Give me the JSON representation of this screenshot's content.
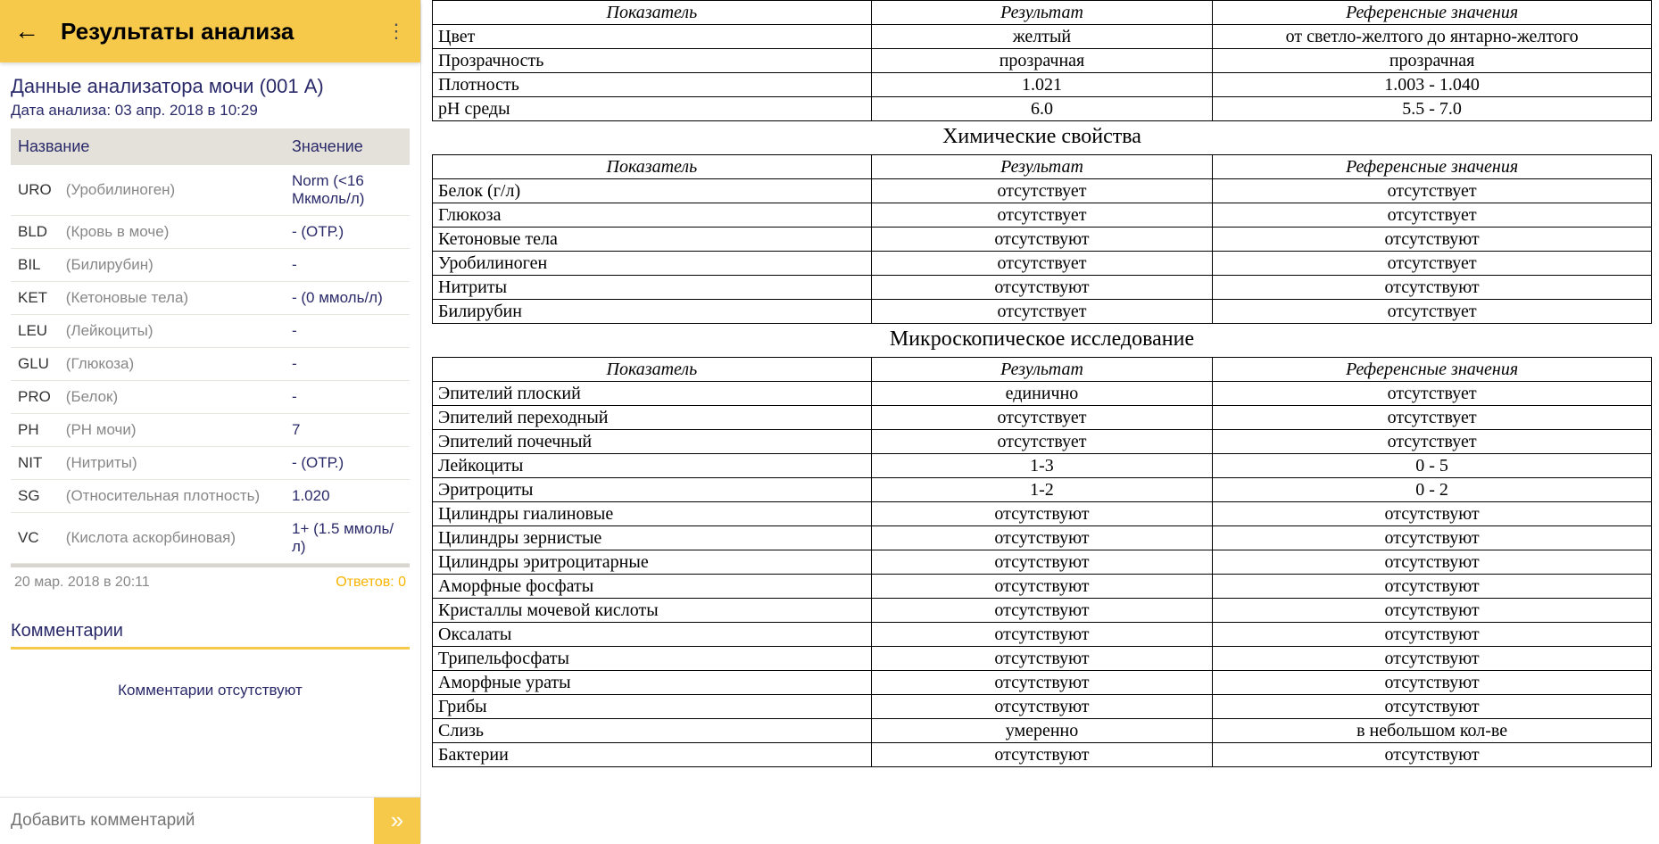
{
  "colors": {
    "accent": "#f7c94b",
    "primary_text": "#2a2a6a",
    "muted": "#888888",
    "border": "#000000",
    "header_bg": "#e4e1da"
  },
  "left": {
    "app_title": "Результаты анализа",
    "section_title": "Данные анализатора мочи (001 А)",
    "analysis_date": "Дата анализа: 03 апр. 2018 в 10:29",
    "table": {
      "col_name": "Название",
      "col_value": "Значение",
      "rows": [
        {
          "code": "URO",
          "name": "(Уробилиноген)",
          "value": "Norm (<16 Мкмоль/л)"
        },
        {
          "code": "BLD",
          "name": "(Кровь в моче)",
          "value": "- (ОТР.)"
        },
        {
          "code": "BIL",
          "name": "(Билирубин)",
          "value": "-"
        },
        {
          "code": "KET",
          "name": "(Кетоновые тела)",
          "value": "- (0 ммоль/л)"
        },
        {
          "code": "LEU",
          "name": "(Лейкоциты)",
          "value": "-"
        },
        {
          "code": "GLU",
          "name": "(Глюкоза)",
          "value": "-"
        },
        {
          "code": "PRO",
          "name": "(Белок)",
          "value": "-"
        },
        {
          "code": "PH",
          "name": "(РН мочи)",
          "value": "7"
        },
        {
          "code": "NIT",
          "name": "(Нитриты)",
          "value": "- (ОТР.)"
        },
        {
          "code": "SG",
          "name": "(Относительная плотность)",
          "value": "1.020"
        },
        {
          "code": "VC",
          "name": "(Кислота аскорбиновая)",
          "value": "1+ (1.5 ммоль/л)"
        }
      ]
    },
    "footer_date": "20 мар. 2018 в 20:11",
    "footer_answers": "Ответов: 0",
    "comments_heading": "Комментарии",
    "no_comments": "Комментарии отсутствуют",
    "comment_placeholder": "Добавить комментарий"
  },
  "right": {
    "headers": {
      "param": "Показатель",
      "result": "Результат",
      "ref": "Референсные значения"
    },
    "phys": {
      "rows": [
        {
          "param": "Цвет",
          "result": "желтый",
          "ref": "от светло-желтого до янтарно-желтого"
        },
        {
          "param": "Прозрачность",
          "result": "прозрачная",
          "ref": "прозрачная"
        },
        {
          "param": "Плотность",
          "result": "1.021",
          "ref": "1.003 - 1.040"
        },
        {
          "param": "pH среды",
          "result": "6.0",
          "ref": "5.5 - 7.0"
        }
      ]
    },
    "chem": {
      "title": "Химические свойства",
      "rows": [
        {
          "param": "Белок (г/л)",
          "result": "отсутствует",
          "ref": "отсутствует"
        },
        {
          "param": "Глюкоза",
          "result": "отсутствует",
          "ref": "отсутствует"
        },
        {
          "param": "Кетоновые тела",
          "result": "отсутствуют",
          "ref": "отсутствуют"
        },
        {
          "param": "Уробилиноген",
          "result": "отсутствует",
          "ref": "отсутствует"
        },
        {
          "param": "Нитриты",
          "result": "отсутствуют",
          "ref": "отсутствуют"
        },
        {
          "param": "Билирубин",
          "result": "отсутствует",
          "ref": "отсутствует"
        }
      ]
    },
    "micro": {
      "title": "Микроскопическое исследование",
      "rows": [
        {
          "param": "Эпителий плоский",
          "result": "единично",
          "ref": "отсутствует"
        },
        {
          "param": "Эпителий переходный",
          "result": "отсутствует",
          "ref": "отсутствует"
        },
        {
          "param": "Эпителий почечный",
          "result": "отсутствует",
          "ref": "отсутствует"
        },
        {
          "param": "Лейкоциты",
          "result": "1-3",
          "ref": "0 - 5"
        },
        {
          "param": "Эритроциты",
          "result": "1-2",
          "ref": "0 - 2"
        },
        {
          "param": "Цилиндры гиалиновые",
          "result": "отсутствуют",
          "ref": "отсутствуют"
        },
        {
          "param": "Цилиндры зернистые",
          "result": "отсутствуют",
          "ref": "отсутствуют"
        },
        {
          "param": "Цилиндры эритроцитарные",
          "result": "отсутствуют",
          "ref": "отсутствуют"
        },
        {
          "param": "Аморфные фосфаты",
          "result": "отсутствуют",
          "ref": "отсутствуют"
        },
        {
          "param": "Кристаллы мочевой кислоты",
          "result": "отсутствуют",
          "ref": "отсутствуют"
        },
        {
          "param": "Оксалаты",
          "result": "отсутствуют",
          "ref": "отсутствуют"
        },
        {
          "param": "Трипельфосфаты",
          "result": "отсутствуют",
          "ref": "отсутствуют"
        },
        {
          "param": "Аморфные ураты",
          "result": "отсутствуют",
          "ref": "отсутствуют"
        },
        {
          "param": "Грибы",
          "result": "отсутствуют",
          "ref": "отсутствуют"
        },
        {
          "param": "Слизь",
          "result": "умеренно",
          "ref": "в небольшом кол-ве"
        },
        {
          "param": "Бактерии",
          "result": "отсутствуют",
          "ref": "отсутствуют"
        }
      ]
    }
  }
}
